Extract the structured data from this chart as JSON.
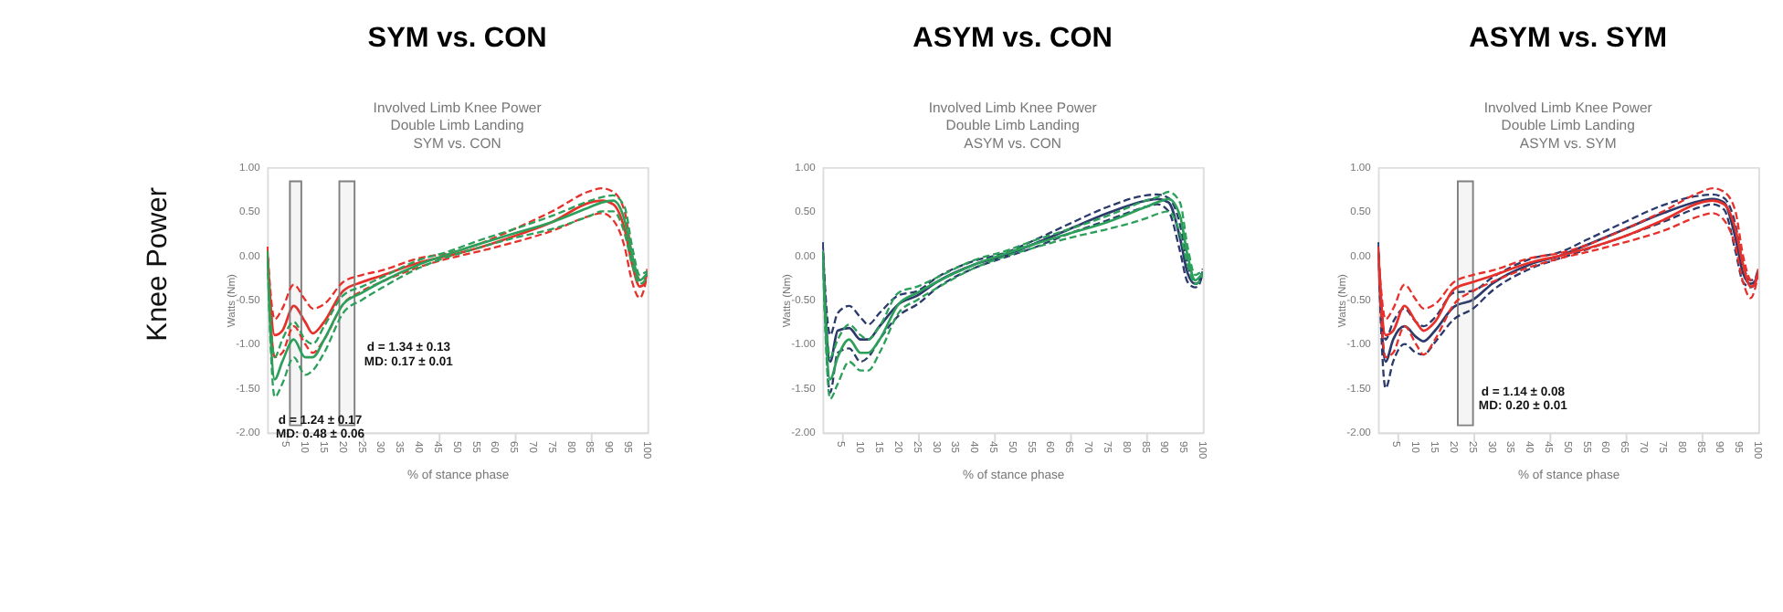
{
  "chart_data": [
    {
      "type": "line",
      "title": "SYM vs. CON",
      "subtitle": "Involved Limb Knee Power\nDouble Limb Landing\nSYM vs. CON",
      "xlabel": "% of stance phase",
      "ylabel": "Watts (Nm)",
      "xlim": [
        0,
        100
      ],
      "xticks": [
        5,
        10,
        15,
        20,
        25,
        30,
        35,
        40,
        45,
        50,
        55,
        60,
        65,
        70,
        75,
        80,
        85,
        90,
        95,
        100
      ],
      "ylim": [
        -2,
        1
      ],
      "yticks": [
        {
          "value": -2,
          "label": "-2.00"
        },
        {
          "value": -1.5,
          "label": "-1.50"
        },
        {
          "value": -1,
          "label": "-1.00"
        },
        {
          "value": -0.5,
          "label": "-0.50"
        },
        {
          "value": 0,
          "label": "0.00"
        },
        {
          "value": 0.5,
          "label": "0.50"
        },
        {
          "value": 1,
          "label": "1.00"
        }
      ],
      "grid": false,
      "x": [
        0,
        2,
        4,
        7,
        10,
        12,
        15,
        20,
        25,
        30,
        40,
        48,
        55,
        65,
        75,
        85,
        88,
        91,
        94,
        96,
        98,
        99,
        100
      ],
      "series": [
        {
          "color": "#e8302a",
          "line_style": "solid",
          "values": [
            0.1,
            -0.9,
            -0.85,
            -0.57,
            -0.75,
            -0.88,
            -0.75,
            -0.4,
            -0.3,
            -0.23,
            -0.08,
            0,
            0.08,
            0.22,
            0.38,
            0.6,
            0.62,
            0.58,
            0.3,
            -0.1,
            -0.35,
            -0.33,
            -0.18
          ]
        },
        {
          "color": "#e8302a",
          "line_style": "dashed",
          "values": [
            0.1,
            -0.72,
            -0.6,
            -0.33,
            -0.5,
            -0.6,
            -0.55,
            -0.3,
            -0.22,
            -0.17,
            -0.03,
            0.03,
            0.12,
            0.3,
            0.5,
            0.73,
            0.76,
            0.72,
            0.5,
            0,
            -0.28,
            -0.3,
            -0.15
          ]
        },
        {
          "color": "#e8302a",
          "line_style": "dashed",
          "values": [
            0.1,
            -1.15,
            -1.1,
            -0.8,
            -1,
            -1.1,
            -0.95,
            -0.55,
            -0.4,
            -0.3,
            -0.13,
            -0.03,
            0.04,
            0.15,
            0.28,
            0.45,
            0.48,
            0.4,
            0.1,
            -0.3,
            -0.48,
            -0.4,
            -0.2
          ]
        },
        {
          "color": "#2ca05a",
          "line_style": "solid",
          "values": [
            0.05,
            -1.4,
            -1.2,
            -0.95,
            -1.15,
            -1.15,
            -0.95,
            -0.55,
            -0.42,
            -0.3,
            -0.1,
            0.02,
            0.12,
            0.25,
            0.38,
            0.55,
            0.6,
            0.62,
            0.4,
            0,
            -0.28,
            -0.25,
            -0.2
          ]
        },
        {
          "color": "#2ca05a",
          "line_style": "dashed",
          "values": [
            0.05,
            -1.15,
            -0.95,
            -0.75,
            -0.95,
            -1,
            -0.8,
            -0.45,
            -0.35,
            -0.25,
            -0.05,
            0.05,
            0.16,
            0.3,
            0.45,
            0.62,
            0.66,
            0.68,
            0.55,
            0.1,
            -0.22,
            -0.2,
            -0.18
          ]
        },
        {
          "color": "#2ca05a",
          "line_style": "dashed",
          "values": [
            0.05,
            -1.6,
            -1.45,
            -1.15,
            -1.35,
            -1.3,
            -1.1,
            -0.65,
            -0.5,
            -0.37,
            -0.14,
            -0.01,
            0.08,
            0.2,
            0.3,
            0.45,
            0.5,
            0.5,
            0.25,
            -0.1,
            -0.32,
            -0.3,
            -0.22
          ]
        }
      ],
      "bands": [
        {
          "axis": "x",
          "from": 6,
          "to": 9,
          "color": "#808080"
        },
        {
          "axis": "x",
          "from": 19,
          "to": 23,
          "color": "#808080"
        }
      ],
      "annotations": [
        "Knee Power",
        "d = 1.24 ± 0.17",
        "MD: 0.48 ± 0.06",
        "d = 1.34 ± 0.13",
        "MD: 0.17 ± 0.01"
      ]
    },
    {
      "type": "line",
      "title": "ASYM vs. CON",
      "subtitle": "Involved Limb Knee Power\nDouble Limb Landing\nASYM vs. CON",
      "xlabel": "% of stance phase",
      "ylabel": "Watts (Nm)",
      "xlim": [
        0,
        100
      ],
      "xticks": [
        5,
        10,
        15,
        20,
        25,
        30,
        35,
        40,
        45,
        50,
        55,
        60,
        65,
        70,
        75,
        80,
        85,
        90,
        95,
        100
      ],
      "ylim": [
        -2,
        1
      ],
      "yticks": [
        {
          "value": -2,
          "label": "-2.00"
        },
        {
          "value": -1.5,
          "label": "-1.50"
        },
        {
          "value": -1,
          "label": "-1.00"
        },
        {
          "value": -0.5,
          "label": "-0.50"
        },
        {
          "value": 0,
          "label": "0.00"
        },
        {
          "value": 0.5,
          "label": "0.50"
        },
        {
          "value": 1,
          "label": "1.00"
        }
      ],
      "grid": false,
      "x": [
        0,
        2,
        4,
        7,
        10,
        12,
        15,
        20,
        25,
        30,
        40,
        48,
        55,
        65,
        75,
        85,
        88,
        91,
        94,
        96,
        98,
        99,
        100
      ],
      "series": [
        {
          "color": "#2b3a6b",
          "line_style": "solid",
          "values": [
            0.15,
            -1.2,
            -0.85,
            -0.82,
            -0.95,
            -0.95,
            -0.8,
            -0.55,
            -0.45,
            -0.3,
            -0.1,
            0,
            0.12,
            0.3,
            0.48,
            0.62,
            0.64,
            0.6,
            0.2,
            -0.2,
            -0.32,
            -0.3,
            -0.18
          ]
        },
        {
          "color": "#2b3a6b",
          "line_style": "dashed",
          "values": [
            0.15,
            -0.9,
            -0.65,
            -0.57,
            -0.7,
            -0.78,
            -0.65,
            -0.45,
            -0.4,
            -0.25,
            -0.06,
            0.03,
            0.16,
            0.36,
            0.55,
            0.68,
            0.69,
            0.65,
            0.35,
            -0.1,
            -0.28,
            -0.27,
            -0.15
          ]
        },
        {
          "color": "#2b3a6b",
          "line_style": "dashed",
          "values": [
            0.15,
            -1.55,
            -1.1,
            -1.05,
            -1.2,
            -1.15,
            -0.95,
            -0.68,
            -0.55,
            -0.37,
            -0.14,
            -0.02,
            0.08,
            0.25,
            0.4,
            0.55,
            0.58,
            0.5,
            0.05,
            -0.3,
            -0.36,
            -0.33,
            -0.2
          ]
        },
        {
          "color": "#2ca05a",
          "line_style": "solid",
          "values": [
            0.05,
            -1.4,
            -1.15,
            -0.95,
            -1.1,
            -1.1,
            -0.95,
            -0.55,
            -0.42,
            -0.3,
            -0.1,
            0.02,
            0.12,
            0.25,
            0.38,
            0.55,
            0.6,
            0.64,
            0.45,
            0,
            -0.28,
            -0.25,
            -0.2
          ]
        },
        {
          "color": "#2ca05a",
          "line_style": "dashed",
          "values": [
            0.05,
            -1.15,
            -0.95,
            -0.78,
            -0.9,
            -0.95,
            -0.8,
            -0.42,
            -0.35,
            -0.25,
            -0.05,
            0.05,
            0.16,
            0.3,
            0.45,
            0.62,
            0.66,
            0.72,
            0.6,
            0.1,
            -0.22,
            -0.2,
            -0.18
          ]
        },
        {
          "color": "#2ca05a",
          "line_style": "dashed",
          "values": [
            0.05,
            -1.62,
            -1.45,
            -1.2,
            -1.3,
            -1.3,
            -1.1,
            -0.65,
            -0.5,
            -0.37,
            -0.14,
            -0.01,
            0.08,
            0.2,
            0.3,
            0.42,
            0.47,
            0.5,
            0.25,
            -0.1,
            -0.32,
            -0.3,
            -0.22
          ]
        }
      ]
    },
    {
      "type": "line",
      "title": "ASYM vs. SYM",
      "subtitle": "Involved Limb Knee Power\nDouble Limb Landing\nASYM vs. SYM",
      "xlabel": "% of stance phase",
      "ylabel": "Watts (Nm)",
      "xlim": [
        0,
        100
      ],
      "xticks": [
        5,
        10,
        15,
        20,
        25,
        30,
        35,
        40,
        45,
        50,
        55,
        60,
        65,
        70,
        75,
        80,
        85,
        90,
        95,
        100
      ],
      "ylim": [
        -2,
        1
      ],
      "yticks": [
        {
          "value": -2,
          "label": "-2.00"
        },
        {
          "value": -1.5,
          "label": "-1.50"
        },
        {
          "value": -1,
          "label": "-1.00"
        },
        {
          "value": -0.5,
          "label": "-0.50"
        },
        {
          "value": 0,
          "label": "0.00"
        },
        {
          "value": 0.5,
          "label": "0.50"
        },
        {
          "value": 1,
          "label": "1.00"
        }
      ],
      "grid": false,
      "x": [
        0,
        2,
        4,
        7,
        10,
        12,
        15,
        20,
        25,
        30,
        40,
        48,
        55,
        65,
        75,
        85,
        88,
        91,
        94,
        96,
        98,
        99,
        100
      ],
      "series": [
        {
          "color": "#2b3a6b",
          "line_style": "solid",
          "values": [
            0.15,
            -1.2,
            -0.95,
            -0.8,
            -0.92,
            -0.97,
            -0.85,
            -0.58,
            -0.5,
            -0.32,
            -0.1,
            0,
            0.12,
            0.3,
            0.48,
            0.62,
            0.64,
            0.6,
            0.2,
            -0.2,
            -0.32,
            -0.3,
            -0.18
          ]
        },
        {
          "color": "#2b3a6b",
          "line_style": "dashed",
          "values": [
            0.15,
            -0.95,
            -0.75,
            -0.6,
            -0.75,
            -0.8,
            -0.7,
            -0.42,
            -0.4,
            -0.25,
            -0.04,
            0.04,
            0.18,
            0.38,
            0.57,
            0.68,
            0.69,
            0.65,
            0.35,
            -0.1,
            -0.28,
            -0.27,
            -0.15
          ]
        },
        {
          "color": "#2b3a6b",
          "line_style": "dashed",
          "values": [
            0.15,
            -1.5,
            -1.2,
            -1.0,
            -1.1,
            -1.12,
            -0.98,
            -0.72,
            -0.6,
            -0.4,
            -0.15,
            -0.03,
            0.07,
            0.22,
            0.38,
            0.55,
            0.58,
            0.52,
            0.05,
            -0.3,
            -0.36,
            -0.33,
            -0.2
          ]
        },
        {
          "color": "#e8302a",
          "line_style": "solid",
          "values": [
            0.1,
            -0.9,
            -0.85,
            -0.57,
            -0.75,
            -0.85,
            -0.75,
            -0.38,
            -0.3,
            -0.23,
            -0.08,
            0,
            0.08,
            0.22,
            0.4,
            0.6,
            0.62,
            0.58,
            0.3,
            -0.1,
            -0.35,
            -0.33,
            -0.18
          ]
        },
        {
          "color": "#e8302a",
          "line_style": "dashed",
          "values": [
            0.1,
            -0.72,
            -0.6,
            -0.33,
            -0.5,
            -0.6,
            -0.55,
            -0.3,
            -0.22,
            -0.17,
            -0.03,
            0.03,
            0.12,
            0.3,
            0.5,
            0.72,
            0.76,
            0.72,
            0.5,
            0,
            -0.28,
            -0.3,
            -0.15
          ]
        },
        {
          "color": "#e8302a",
          "line_style": "dashed",
          "values": [
            0.1,
            -1.15,
            -1.1,
            -0.8,
            -1,
            -1.12,
            -0.95,
            -0.55,
            -0.4,
            -0.3,
            -0.13,
            -0.03,
            0.04,
            0.15,
            0.28,
            0.45,
            0.48,
            0.4,
            0.1,
            -0.3,
            -0.48,
            -0.4,
            -0.2
          ]
        }
      ],
      "bands": [
        {
          "axis": "x",
          "from": 21,
          "to": 25,
          "color": "#808080"
        }
      ],
      "annotations": [
        "d = 1.14 ± 0.08",
        "MD: 0.20 ± 0.01"
      ]
    }
  ]
}
